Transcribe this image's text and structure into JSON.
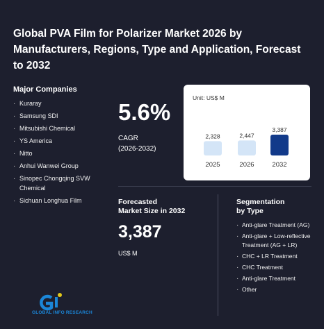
{
  "report": {
    "title": "Global PVA Film for Polarizer Market 2026 by Manufacturers, Regions, Type and Application, Forecast to 2032"
  },
  "companies": {
    "heading": "Major Companies",
    "items": [
      "Kuraray",
      "Samsung SDI",
      "Mitsubishi Chemical",
      "YS America",
      "Nitto",
      "Anhui Wanwei Group",
      "Sinopec Chongqing SVW Chemical",
      "Sichuan Longhua Film"
    ]
  },
  "cagr": {
    "value": "5.6%",
    "label_line1": "CAGR",
    "label_line2": "(2026-2032)"
  },
  "forecast": {
    "label_line1": "Forecasted",
    "label_line2": "Market Size in 2032",
    "value": "3,387",
    "unit": "US$ M"
  },
  "segmentation": {
    "heading_line1": "Segmentation",
    "heading_line2": "by Type",
    "items": [
      "Anti-glare Treatment (AG)",
      "Anti-glare + Low-reflective Treatment (AG + LR)",
      "CHC + LR Treatment",
      "CHC Treatment",
      "Anti-glare Treatment",
      "Other"
    ]
  },
  "logo": {
    "text": "GLOBAL INFO RESEARCH",
    "colors": {
      "blue": "#1b86d8",
      "yellow": "#e2c81a"
    }
  },
  "colors": {
    "background": "#1d1f2e",
    "bar_light": "#d4e5f7",
    "bar_highlight": "#123a8a"
  },
  "chart_data": {
    "type": "bar",
    "unit_label": "Unit: US$ M",
    "categories": [
      "2025",
      "2026",
      "2032"
    ],
    "values": [
      2328,
      2447,
      3387
    ],
    "value_labels": [
      "2,328",
      "2,447",
      "3,387"
    ],
    "highlight_index": 2,
    "ylim": [
      0,
      3387
    ]
  }
}
